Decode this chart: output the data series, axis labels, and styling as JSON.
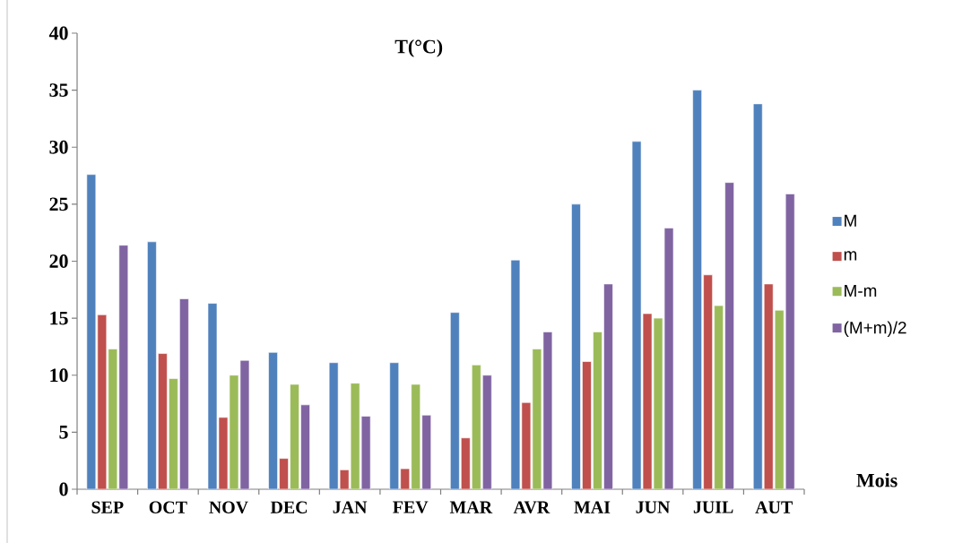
{
  "chart_data": {
    "type": "bar",
    "title": "T(°C)",
    "xlabel": "Mois",
    "categories": [
      "SEP",
      "OCT",
      "NOV",
      "DEC",
      "JAN",
      "FEV",
      "MAR",
      "AVR",
      "MAI",
      "JUN",
      "JUIL",
      "AUT"
    ],
    "series": [
      {
        "name": "M",
        "color": "#4f81bd",
        "values": [
          27.6,
          21.7,
          16.3,
          12.0,
          11.1,
          11.1,
          15.5,
          20.1,
          25.0,
          30.5,
          35.0,
          33.8
        ]
      },
      {
        "name": "m",
        "color": "#c0504d",
        "values": [
          15.3,
          11.9,
          6.3,
          2.7,
          1.7,
          1.8,
          4.5,
          7.6,
          11.2,
          15.4,
          18.8,
          18.0
        ]
      },
      {
        "name": "M-m",
        "color": "#9bbb59",
        "values": [
          12.3,
          9.7,
          10.0,
          9.2,
          9.3,
          9.2,
          10.9,
          12.3,
          13.8,
          15.0,
          16.1,
          15.7
        ]
      },
      {
        "name": "(M+m)/2",
        "color": "#8064a2",
        "values": [
          21.4,
          16.7,
          11.3,
          7.4,
          6.4,
          6.5,
          10.0,
          13.8,
          18.0,
          22.9,
          26.9,
          25.9
        ]
      }
    ],
    "ylim": [
      0,
      40
    ],
    "yticks": [
      0,
      5,
      10,
      15,
      20,
      25,
      30,
      35,
      40
    ],
    "grid": false,
    "legend": "right"
  }
}
